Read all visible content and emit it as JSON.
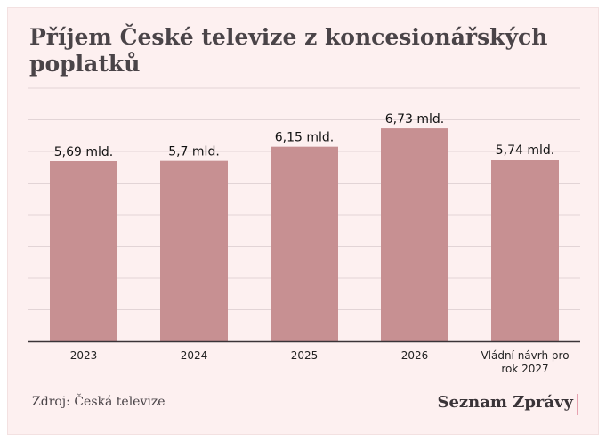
{
  "title": "Příjem České televize z koncesionářských poplatků",
  "source": "Zdroj: Česká televize",
  "brand": "Seznam Zprávy",
  "colors": {
    "bar": "#c79092",
    "grid": "#e2d4d6",
    "axis": "#3a3438",
    "background": "#fdf0f0"
  },
  "chart_data": {
    "type": "bar",
    "title": "Příjem České televize z koncesionářských poplatků",
    "categories": [
      [
        "2023"
      ],
      [
        "2024"
      ],
      [
        "2025"
      ],
      [
        "2026"
      ],
      [
        "Vládní návrh pro",
        "rok 2027"
      ]
    ],
    "values": [
      5.69,
      5.7,
      6.15,
      6.73,
      5.74
    ],
    "data_labels": [
      "5,69 mld.",
      "5,7 mld.",
      "6,15 mld.",
      "6,73 mld.",
      "5,74 mld."
    ],
    "xlabel": "",
    "ylabel": "",
    "ylim": [
      0,
      8
    ],
    "grid": true,
    "legend": "none"
  }
}
